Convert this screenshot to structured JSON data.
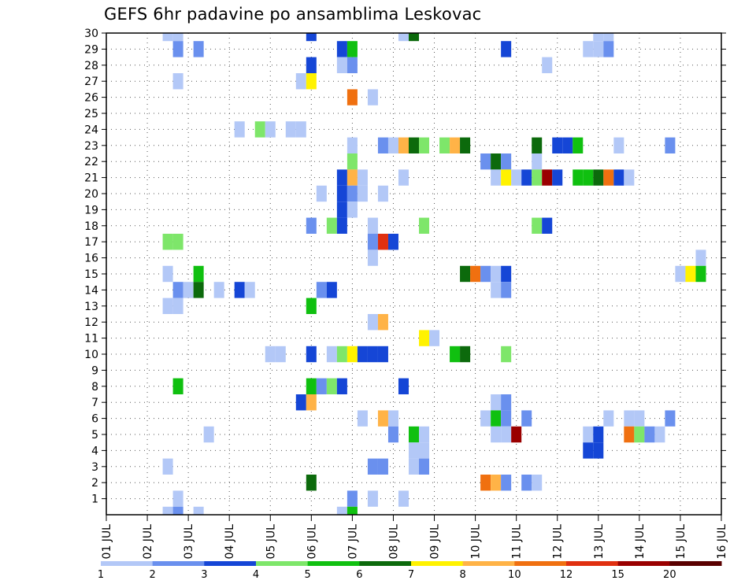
{
  "title": "GEFS 6hr padavine po ansamblima Leskovac",
  "chart_data": {
    "type": "heatmap",
    "title": "GEFS 6hr padavine po ansamblima Leskovac",
    "x_ticks": [
      "01 JUL",
      "02 JUL",
      "03 JUL",
      "04 JUL",
      "05 JUL",
      "06 JUL",
      "07 JUL",
      "08 JUL",
      "09 JUL",
      "10 JUL",
      "11 JUL",
      "12 JUL",
      "13 JUL",
      "14 JUL",
      "15 JUL",
      "16 JUL"
    ],
    "y_ticks": [
      "1",
      "2",
      "3",
      "4",
      "5",
      "6",
      "7",
      "8",
      "9",
      "10",
      "11",
      "12",
      "13",
      "14",
      "15",
      "16",
      "17",
      "18",
      "19",
      "20",
      "21",
      "22",
      "23",
      "24",
      "25",
      "26",
      "27",
      "28",
      "29",
      "30"
    ],
    "xlim": [
      1,
      16
    ],
    "ylim": [
      0,
      30
    ],
    "grid": true,
    "legend": {
      "position": "bottom",
      "colors": [
        "#b3c8f7",
        "#6a90ee",
        "#1546d6",
        "#7ee66a",
        "#10c010",
        "#0c6a0c",
        "#fff200",
        "#ffb347",
        "#f07010",
        "#e03010",
        "#9a0000",
        "#5a0000"
      ],
      "labels": [
        "1",
        "2",
        "3",
        "4",
        "5",
        "6",
        "7",
        "8",
        "10",
        "12",
        "15",
        "20"
      ]
    },
    "cells": [
      {
        "day": 2.5,
        "member": 30,
        "level": 1
      },
      {
        "day": 2.75,
        "member": 30,
        "level": 1
      },
      {
        "day": 6.0,
        "member": 30,
        "level": 3
      },
      {
        "day": 8.25,
        "member": 30,
        "level": 1
      },
      {
        "day": 8.5,
        "member": 30,
        "level": 6
      },
      {
        "day": 13.0,
        "member": 30,
        "level": 1
      },
      {
        "day": 13.25,
        "member": 30,
        "level": 1
      },
      {
        "day": 2.75,
        "member": 29,
        "level": 2
      },
      {
        "day": 3.25,
        "member": 29,
        "level": 2
      },
      {
        "day": 6.75,
        "member": 29,
        "level": 3
      },
      {
        "day": 7.0,
        "member": 29,
        "level": 5
      },
      {
        "day": 10.75,
        "member": 29,
        "level": 3
      },
      {
        "day": 12.75,
        "member": 29,
        "level": 1
      },
      {
        "day": 13.0,
        "member": 29,
        "level": 1
      },
      {
        "day": 13.25,
        "member": 29,
        "level": 2
      },
      {
        "day": 6.0,
        "member": 28,
        "level": 3
      },
      {
        "day": 6.75,
        "member": 28,
        "level": 1
      },
      {
        "day": 7.0,
        "member": 28,
        "level": 2
      },
      {
        "day": 11.75,
        "member": 28,
        "level": 1
      },
      {
        "day": 2.75,
        "member": 27,
        "level": 1
      },
      {
        "day": 5.75,
        "member": 27,
        "level": 1
      },
      {
        "day": 6.0,
        "member": 27,
        "level": 7
      },
      {
        "day": 7.0,
        "member": 26,
        "level": 9
      },
      {
        "day": 7.5,
        "member": 26,
        "level": 1
      },
      {
        "day": 4.25,
        "member": 24,
        "level": 1
      },
      {
        "day": 4.75,
        "member": 24,
        "level": 4
      },
      {
        "day": 5.0,
        "member": 24,
        "level": 1
      },
      {
        "day": 5.5,
        "member": 24,
        "level": 1
      },
      {
        "day": 5.75,
        "member": 24,
        "level": 1
      },
      {
        "day": 7.0,
        "member": 23,
        "level": 1
      },
      {
        "day": 7.75,
        "member": 23,
        "level": 2
      },
      {
        "day": 8.0,
        "member": 23,
        "level": 1
      },
      {
        "day": 8.25,
        "member": 23,
        "level": 8
      },
      {
        "day": 8.5,
        "member": 23,
        "level": 6
      },
      {
        "day": 8.75,
        "member": 23,
        "level": 4
      },
      {
        "day": 9.25,
        "member": 23,
        "level": 4
      },
      {
        "day": 9.5,
        "member": 23,
        "level": 8
      },
      {
        "day": 9.75,
        "member": 23,
        "level": 6
      },
      {
        "day": 11.5,
        "member": 23,
        "level": 6
      },
      {
        "day": 12.0,
        "member": 23,
        "level": 3
      },
      {
        "day": 12.25,
        "member": 23,
        "level": 3
      },
      {
        "day": 12.5,
        "member": 23,
        "level": 5
      },
      {
        "day": 13.5,
        "member": 23,
        "level": 1
      },
      {
        "day": 14.75,
        "member": 23,
        "level": 2
      },
      {
        "day": 7.0,
        "member": 22,
        "level": 4
      },
      {
        "day": 10.25,
        "member": 22,
        "level": 2
      },
      {
        "day": 10.5,
        "member": 22,
        "level": 6
      },
      {
        "day": 10.75,
        "member": 22,
        "level": 2
      },
      {
        "day": 11.5,
        "member": 22,
        "level": 1
      },
      {
        "day": 6.75,
        "member": 21,
        "level": 3
      },
      {
        "day": 7.0,
        "member": 21,
        "level": 8
      },
      {
        "day": 7.25,
        "member": 21,
        "level": 1
      },
      {
        "day": 8.25,
        "member": 21,
        "level": 1
      },
      {
        "day": 10.5,
        "member": 21,
        "level": 1
      },
      {
        "day": 10.75,
        "member": 21,
        "level": 7
      },
      {
        "day": 11.0,
        "member": 21,
        "level": 1
      },
      {
        "day": 11.25,
        "member": 21,
        "level": 3
      },
      {
        "day": 11.5,
        "member": 21,
        "level": 4
      },
      {
        "day": 11.75,
        "member": 21,
        "level": 11
      },
      {
        "day": 12.0,
        "member": 21,
        "level": 3
      },
      {
        "day": 12.5,
        "member": 21,
        "level": 5
      },
      {
        "day": 12.75,
        "member": 21,
        "level": 5
      },
      {
        "day": 13.0,
        "member": 21,
        "level": 6
      },
      {
        "day": 13.25,
        "member": 21,
        "level": 9
      },
      {
        "day": 13.5,
        "member": 21,
        "level": 3
      },
      {
        "day": 13.75,
        "member": 21,
        "level": 1
      },
      {
        "day": 6.25,
        "member": 20,
        "level": 1
      },
      {
        "day": 6.75,
        "member": 20,
        "level": 3
      },
      {
        "day": 7.0,
        "member": 20,
        "level": 2
      },
      {
        "day": 7.25,
        "member": 20,
        "level": 1
      },
      {
        "day": 7.75,
        "member": 20,
        "level": 1
      },
      {
        "day": 6.75,
        "member": 19,
        "level": 3
      },
      {
        "day": 7.0,
        "member": 19,
        "level": 1
      },
      {
        "day": 6.0,
        "member": 18,
        "level": 2
      },
      {
        "day": 6.5,
        "member": 18,
        "level": 4
      },
      {
        "day": 6.75,
        "member": 18,
        "level": 3
      },
      {
        "day": 7.5,
        "member": 18,
        "level": 1
      },
      {
        "day": 8.75,
        "member": 18,
        "level": 4
      },
      {
        "day": 11.5,
        "member": 18,
        "level": 4
      },
      {
        "day": 11.75,
        "member": 18,
        "level": 3
      },
      {
        "day": 2.5,
        "member": 17,
        "level": 4
      },
      {
        "day": 2.75,
        "member": 17,
        "level": 4
      },
      {
        "day": 7.5,
        "member": 17,
        "level": 2
      },
      {
        "day": 7.75,
        "member": 17,
        "level": 10
      },
      {
        "day": 8.0,
        "member": 17,
        "level": 3
      },
      {
        "day": 7.5,
        "member": 16,
        "level": 1
      },
      {
        "day": 15.5,
        "member": 16,
        "level": 1
      },
      {
        "day": 2.5,
        "member": 15,
        "level": 1
      },
      {
        "day": 3.25,
        "member": 15,
        "level": 5
      },
      {
        "day": 9.75,
        "member": 15,
        "level": 6
      },
      {
        "day": 10.0,
        "member": 15,
        "level": 9
      },
      {
        "day": 10.25,
        "member": 15,
        "level": 2
      },
      {
        "day": 10.5,
        "member": 15,
        "level": 1
      },
      {
        "day": 10.75,
        "member": 15,
        "level": 3
      },
      {
        "day": 15.0,
        "member": 15,
        "level": 1
      },
      {
        "day": 15.25,
        "member": 15,
        "level": 7
      },
      {
        "day": 15.5,
        "member": 15,
        "level": 5
      },
      {
        "day": 2.75,
        "member": 14,
        "level": 2
      },
      {
        "day": 3.0,
        "member": 14,
        "level": 1
      },
      {
        "day": 3.25,
        "member": 14,
        "level": 6
      },
      {
        "day": 3.75,
        "member": 14,
        "level": 1
      },
      {
        "day": 4.25,
        "member": 14,
        "level": 3
      },
      {
        "day": 4.5,
        "member": 14,
        "level": 1
      },
      {
        "day": 6.25,
        "member": 14,
        "level": 2
      },
      {
        "day": 6.5,
        "member": 14,
        "level": 3
      },
      {
        "day": 10.5,
        "member": 14,
        "level": 1
      },
      {
        "day": 10.75,
        "member": 14,
        "level": 2
      },
      {
        "day": 2.5,
        "member": 13,
        "level": 1
      },
      {
        "day": 2.75,
        "member": 13,
        "level": 1
      },
      {
        "day": 6.0,
        "member": 13,
        "level": 5
      },
      {
        "day": 7.5,
        "member": 12,
        "level": 1
      },
      {
        "day": 7.75,
        "member": 12,
        "level": 8
      },
      {
        "day": 8.75,
        "member": 11,
        "level": 7
      },
      {
        "day": 9.0,
        "member": 11,
        "level": 1
      },
      {
        "day": 5.0,
        "member": 10,
        "level": 1
      },
      {
        "day": 5.25,
        "member": 10,
        "level": 1
      },
      {
        "day": 6.0,
        "member": 10,
        "level": 3
      },
      {
        "day": 6.5,
        "member": 10,
        "level": 1
      },
      {
        "day": 6.75,
        "member": 10,
        "level": 4
      },
      {
        "day": 7.0,
        "member": 10,
        "level": 7
      },
      {
        "day": 7.25,
        "member": 10,
        "level": 3
      },
      {
        "day": 7.5,
        "member": 10,
        "level": 3
      },
      {
        "day": 7.75,
        "member": 10,
        "level": 3
      },
      {
        "day": 9.5,
        "member": 10,
        "level": 5
      },
      {
        "day": 9.75,
        "member": 10,
        "level": 6
      },
      {
        "day": 10.75,
        "member": 10,
        "level": 4
      },
      {
        "day": 2.75,
        "member": 8,
        "level": 5
      },
      {
        "day": 6.0,
        "member": 8,
        "level": 5
      },
      {
        "day": 6.25,
        "member": 8,
        "level": 2
      },
      {
        "day": 6.5,
        "member": 8,
        "level": 4
      },
      {
        "day": 6.75,
        "member": 8,
        "level": 3
      },
      {
        "day": 8.25,
        "member": 8,
        "level": 3
      },
      {
        "day": 5.75,
        "member": 7,
        "level": 3
      },
      {
        "day": 6.0,
        "member": 7,
        "level": 8
      },
      {
        "day": 10.5,
        "member": 7,
        "level": 1
      },
      {
        "day": 10.75,
        "member": 7,
        "level": 2
      },
      {
        "day": 7.25,
        "member": 6,
        "level": 1
      },
      {
        "day": 7.75,
        "member": 6,
        "level": 8
      },
      {
        "day": 8.0,
        "member": 6,
        "level": 1
      },
      {
        "day": 10.25,
        "member": 6,
        "level": 1
      },
      {
        "day": 10.5,
        "member": 6,
        "level": 5
      },
      {
        "day": 10.75,
        "member": 6,
        "level": 2
      },
      {
        "day": 11.25,
        "member": 6,
        "level": 2
      },
      {
        "day": 13.25,
        "member": 6,
        "level": 1
      },
      {
        "day": 13.75,
        "member": 6,
        "level": 1
      },
      {
        "day": 14.0,
        "member": 6,
        "level": 1
      },
      {
        "day": 14.75,
        "member": 6,
        "level": 2
      },
      {
        "day": 3.5,
        "member": 5,
        "level": 1
      },
      {
        "day": 8.0,
        "member": 5,
        "level": 2
      },
      {
        "day": 8.5,
        "member": 5,
        "level": 5
      },
      {
        "day": 8.75,
        "member": 5,
        "level": 1
      },
      {
        "day": 10.5,
        "member": 5,
        "level": 1
      },
      {
        "day": 10.75,
        "member": 5,
        "level": 1
      },
      {
        "day": 11.0,
        "member": 5,
        "level": 11
      },
      {
        "day": 12.75,
        "member": 5,
        "level": 1
      },
      {
        "day": 13.0,
        "member": 5,
        "level": 3
      },
      {
        "day": 13.75,
        "member": 5,
        "level": 9
      },
      {
        "day": 14.0,
        "member": 5,
        "level": 4
      },
      {
        "day": 14.25,
        "member": 5,
        "level": 2
      },
      {
        "day": 14.5,
        "member": 5,
        "level": 1
      },
      {
        "day": 8.5,
        "member": 4,
        "level": 1
      },
      {
        "day": 8.75,
        "member": 4,
        "level": 1
      },
      {
        "day": 12.75,
        "member": 4,
        "level": 3
      },
      {
        "day": 13.0,
        "member": 4,
        "level": 3
      },
      {
        "day": 2.5,
        "member": 3,
        "level": 1
      },
      {
        "day": 7.5,
        "member": 3,
        "level": 2
      },
      {
        "day": 7.75,
        "member": 3,
        "level": 2
      },
      {
        "day": 8.5,
        "member": 3,
        "level": 1
      },
      {
        "day": 8.75,
        "member": 3,
        "level": 2
      },
      {
        "day": 6.0,
        "member": 2,
        "level": 6
      },
      {
        "day": 10.25,
        "member": 2,
        "level": 9
      },
      {
        "day": 10.5,
        "member": 2,
        "level": 8
      },
      {
        "day": 10.75,
        "member": 2,
        "level": 2
      },
      {
        "day": 11.25,
        "member": 2,
        "level": 2
      },
      {
        "day": 11.5,
        "member": 2,
        "level": 1
      },
      {
        "day": 2.75,
        "member": 1,
        "level": 1
      },
      {
        "day": 7.0,
        "member": 1,
        "level": 2
      },
      {
        "day": 7.5,
        "member": 1,
        "level": 1
      },
      {
        "day": 8.25,
        "member": 1,
        "level": 1
      },
      {
        "day": 2.5,
        "member": 0,
        "level": 1
      },
      {
        "day": 2.75,
        "member": 0,
        "level": 2
      },
      {
        "day": 3.25,
        "member": 0,
        "level": 1
      },
      {
        "day": 6.75,
        "member": 0,
        "level": 1
      },
      {
        "day": 7.0,
        "member": 0,
        "level": 5
      }
    ]
  }
}
